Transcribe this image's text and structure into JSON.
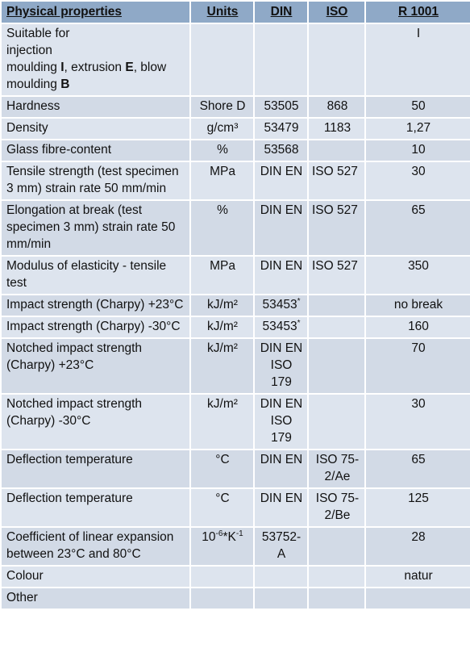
{
  "header": {
    "property": "Physical properties",
    "units": "Units",
    "din": "DIN",
    "iso": "ISO",
    "r1001": "R 1001"
  },
  "rows": {
    "suitable": {
      "p1": "Suitable for",
      "p2": "injection",
      "p3a": "moulding ",
      "p3b": "I",
      "p3c": ", extrusion ",
      "p3d": "E",
      "p3e": ", blow",
      "p4a": "moulding ",
      "p4b": "B",
      "units": "",
      "din": "",
      "iso": "",
      "r": "I"
    },
    "hardness": {
      "property": "Hardness",
      "units": "Shore D",
      "din": "53505",
      "iso": "868",
      "r": "50"
    },
    "density": {
      "property": "Density",
      "units": "g/cm³",
      "din": "53479",
      "iso": "1183",
      "r": "1,27"
    },
    "glass": {
      "property": "Glass fibre-content",
      "units": "%",
      "din": "53568",
      "iso": "",
      "r": "10"
    },
    "tensile": {
      "property": "Tensile strength (test specimen 3 mm) strain rate 50 mm/min",
      "units": "MPa",
      "din": "DIN EN",
      "iso": "ISO 527",
      "r": "30"
    },
    "elongation": {
      "property": "Elongation at break (test specimen 3 mm) strain rate 50 mm/min",
      "units": "%",
      "din": "DIN EN",
      "iso": "ISO 527",
      "r": "65"
    },
    "modulus": {
      "property": "Modulus of elasticity - tensile test",
      "units": "MPa",
      "din": "DIN EN",
      "iso": "ISO 527",
      "r": "350"
    },
    "impact23": {
      "property": "Impact strength (Charpy) +23°C",
      "units": "kJ/m²",
      "din": "53453",
      "din_mark": "*",
      "iso": "",
      "r": "no break"
    },
    "impactm30": {
      "property": "Impact strength (Charpy) -30°C",
      "units": "kJ/m²",
      "din": "53453",
      "din_mark": "*",
      "iso": "",
      "r": "160"
    },
    "notched23": {
      "property": "Notched impact strength (Charpy) +23°C",
      "units": "kJ/m²",
      "din": "DIN EN ISO 179",
      "iso": "",
      "r": "70"
    },
    "notchedm30": {
      "property": "Notched impact strength (Charpy) -30°C",
      "units": "kJ/m²",
      "din": "DIN EN ISO 179",
      "iso": "",
      "r": "30"
    },
    "deflectionA": {
      "property": "Deflection temperature",
      "units": "°C",
      "din": "DIN EN",
      "iso": "ISO 75-2/Ae",
      "r": "65"
    },
    "deflectionB": {
      "property": "Deflection temperature",
      "units": "°C",
      "din": "DIN EN",
      "iso": "ISO 75-2/Be",
      "r": "125"
    },
    "expansion": {
      "property": "Coefficient of linear expansion between 23°C and 80°C",
      "units_a": "10",
      "units_b": "-6",
      "units_c": "*K",
      "units_d": "-1",
      "din": "53752-A",
      "iso": "",
      "r": "28"
    },
    "colour": {
      "property": "Colour",
      "units": "",
      "din": "",
      "iso": "",
      "r": "natur"
    },
    "other": {
      "property": "Other",
      "units": "",
      "din": "",
      "iso": "",
      "r": ""
    }
  }
}
